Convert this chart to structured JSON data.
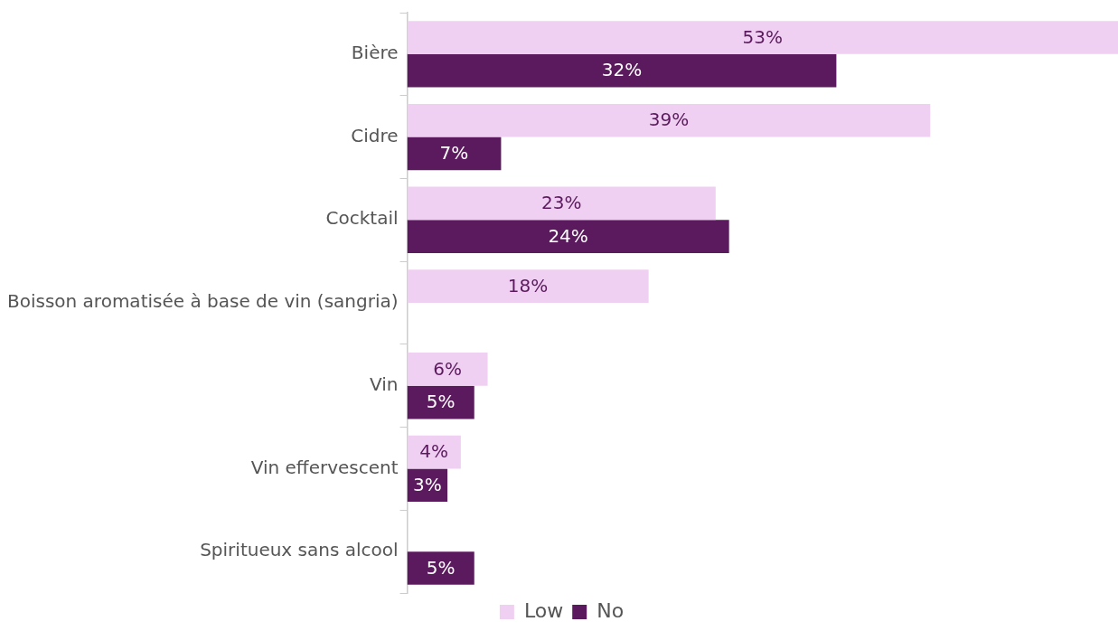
{
  "chart_data": {
    "type": "bar",
    "orientation": "horizontal",
    "legend": "bottom",
    "categories": [
      "Bière",
      "Cidre",
      "Cocktail",
      "Boisson aromatisée à base de vin (sangria)",
      "Vin",
      "Vin effervescent",
      "Spiritueux sans alcool"
    ],
    "series": [
      {
        "name": "Low",
        "color": "#f0d0f2",
        "values": [
          53,
          39,
          23,
          18,
          6,
          4,
          null
        ],
        "value_labels": [
          "53%",
          "39%",
          "23%",
          "18%",
          "6%",
          "4%",
          null
        ]
      },
      {
        "name": "No",
        "color": "#5c1a5e",
        "values": [
          32,
          7,
          24,
          null,
          5,
          3,
          5
        ],
        "value_labels": [
          "32%",
          "7%",
          "24%",
          null,
          "5%",
          "3%",
          "5%"
        ]
      }
    ]
  }
}
